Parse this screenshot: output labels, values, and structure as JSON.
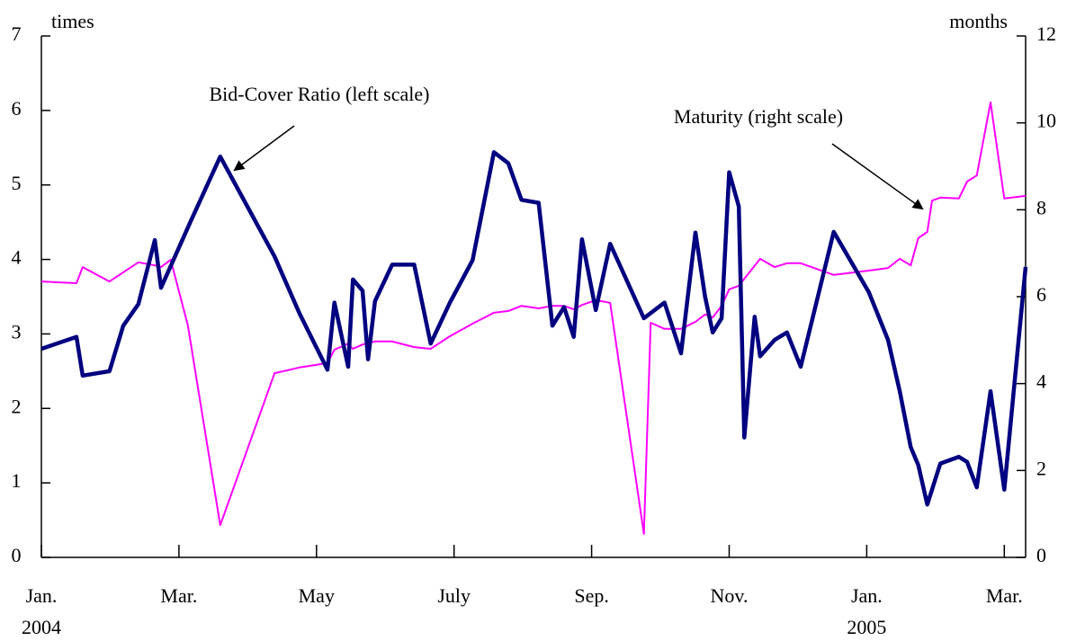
{
  "chart_data": {
    "type": "line",
    "y_axis_label": "times",
    "y2_axis_label": "months",
    "annotations": [
      "Bid-Cover Ratio (left scale)",
      "Maturity (right scale)"
    ],
    "xlim": [
      0,
      14.31
    ],
    "xticks": [
      {
        "value": 0,
        "label": "Jan."
      },
      {
        "value": 2,
        "label": "Mar."
      },
      {
        "value": 4,
        "label": "May"
      },
      {
        "value": 6,
        "label": "July"
      },
      {
        "value": 8,
        "label": "Sep."
      },
      {
        "value": 10,
        "label": "Nov."
      },
      {
        "value": 12,
        "label": "Jan."
      },
      {
        "value": 14,
        "label": "Mar."
      }
    ],
    "year_labels": [
      {
        "value": 0,
        "label": "2004"
      },
      {
        "value": 12,
        "label": "2005"
      }
    ],
    "ylim": [
      0,
      7
    ],
    "yticks": [
      0,
      1,
      2,
      3,
      4,
      5,
      6,
      7
    ],
    "y2lim": [
      0,
      12
    ],
    "y2ticks": [
      0,
      2,
      4,
      6,
      8,
      10,
      12
    ],
    "series": [
      {
        "name": "Bid-Cover Ratio",
        "color": "#000080",
        "axis": "y",
        "x": [
          0,
          0.51,
          0.6,
          0.99,
          1.19,
          1.41,
          1.65,
          1.74,
          2.16,
          2.6,
          3.39,
          3.75,
          4.16,
          4.26,
          4.46,
          4.53,
          4.67,
          4.75,
          4.85,
          5.1,
          5.42,
          5.66,
          5.94,
          6.27,
          6.58,
          6.79,
          6.98,
          7.23,
          7.43,
          7.6,
          7.74,
          7.86,
          8.06,
          8.27,
          8.76,
          9.06,
          9.3,
          9.51,
          9.65,
          9.76,
          9.89,
          10.0,
          10.14,
          10.22,
          10.37,
          10.45,
          10.66,
          10.84,
          11.04,
          11.52,
          12.03,
          12.31,
          12.48,
          12.64,
          12.75,
          12.88,
          13.07,
          13.34,
          13.46,
          13.6,
          13.8,
          14.0,
          14.31
        ],
        "values": [
          2.8,
          2.96,
          2.44,
          2.5,
          3.11,
          3.4,
          4.26,
          3.62,
          4.49,
          5.38,
          4.04,
          3.28,
          2.52,
          3.42,
          2.56,
          3.73,
          3.58,
          2.66,
          3.44,
          3.93,
          3.93,
          2.87,
          3.42,
          3.99,
          5.44,
          5.29,
          4.8,
          4.76,
          3.11,
          3.36,
          2.96,
          4.27,
          3.32,
          4.21,
          3.21,
          3.42,
          2.74,
          4.36,
          3.5,
          3.02,
          3.21,
          5.17,
          4.71,
          1.61,
          3.23,
          2.7,
          2.92,
          3.02,
          2.56,
          4.37,
          3.56,
          2.92,
          2.23,
          1.48,
          1.24,
          0.71,
          1.26,
          1.35,
          1.28,
          0.94,
          2.23,
          0.91,
          3.9
        ]
      },
      {
        "name": "Maturity",
        "color": "#ff00ff",
        "axis": "y2",
        "x": [
          0,
          0.51,
          0.6,
          0.99,
          1.41,
          1.65,
          1.74,
          1.88,
          2.13,
          2.6,
          3.39,
          3.75,
          4.16,
          4.26,
          4.46,
          4.53,
          4.67,
          4.85,
          5.1,
          5.42,
          5.66,
          5.94,
          6.27,
          6.58,
          6.79,
          6.98,
          7.23,
          7.43,
          7.6,
          7.74,
          7.86,
          8.06,
          8.27,
          8.76,
          8.86,
          9.06,
          9.3,
          9.51,
          9.65,
          9.76,
          9.89,
          10.0,
          10.14,
          10.45,
          10.66,
          10.84,
          11.04,
          11.52,
          12.03,
          12.31,
          12.48,
          12.64,
          12.75,
          12.88,
          12.95,
          13.07,
          13.34,
          13.46,
          13.6,
          13.8,
          14.0,
          14.31
        ],
        "values": [
          6.35,
          6.31,
          6.68,
          6.35,
          6.79,
          6.72,
          6.68,
          6.85,
          5.34,
          0.74,
          4.24,
          4.37,
          4.47,
          4.78,
          4.92,
          4.8,
          4.9,
          4.97,
          4.97,
          4.84,
          4.8,
          5.09,
          5.38,
          5.63,
          5.67,
          5.79,
          5.73,
          5.79,
          5.79,
          5.71,
          5.81,
          5.92,
          5.86,
          0.54,
          5.4,
          5.26,
          5.26,
          5.42,
          5.59,
          5.52,
          5.79,
          6.17,
          6.25,
          6.87,
          6.68,
          6.77,
          6.77,
          6.5,
          6.6,
          6.66,
          6.87,
          6.72,
          7.35,
          7.49,
          8.21,
          8.28,
          8.26,
          8.65,
          8.79,
          10.47,
          8.26,
          8.32
        ]
      }
    ]
  }
}
